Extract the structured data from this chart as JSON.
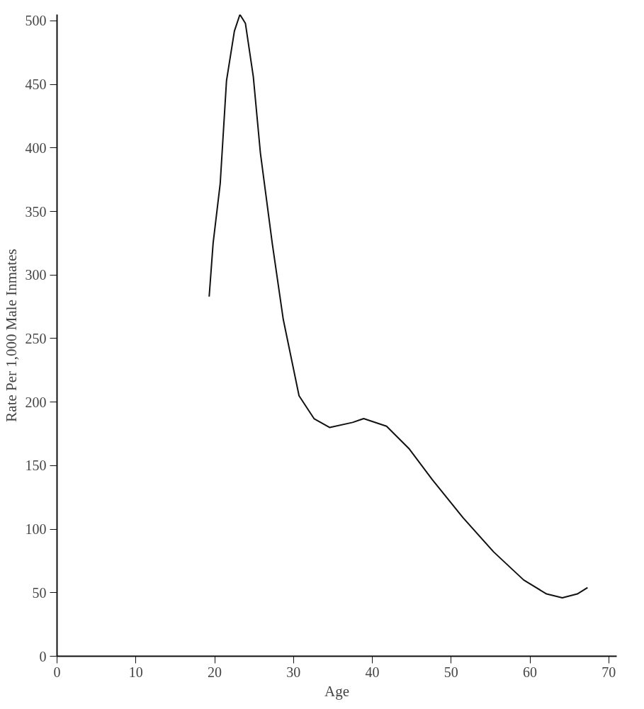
{
  "chart_data": {
    "type": "line",
    "xlabel": "Age",
    "ylabel": "Rate Per 1,000 Male Inmates",
    "xlim": [
      0,
      71
    ],
    "ylim": [
      0,
      505
    ],
    "xticks": [
      0,
      10,
      20,
      30,
      40,
      50,
      60,
      70
    ],
    "yticks": [
      0,
      50,
      100,
      150,
      200,
      250,
      300,
      350,
      400,
      450,
      500
    ],
    "grid": false,
    "marker": "none",
    "line_style": "solid",
    "series": [
      {
        "color": "#111111",
        "x": [
          19.3,
          19.8,
          20.7,
          21.5,
          22.5,
          23.2,
          23.9,
          24.9,
          25.8,
          27.3,
          28.7,
          30.7,
          32.6,
          34.6,
          37.5,
          38.9,
          41.8,
          44.7,
          47.6,
          51.5,
          55.4,
          59.2,
          62.1,
          64.1,
          66.0,
          67.3
        ],
        "values": [
          283,
          325,
          372,
          453,
          492,
          505,
          498,
          456,
          396,
          325,
          265,
          205,
          187,
          180,
          184,
          187,
          181,
          163,
          139,
          109,
          82,
          60,
          49,
          46,
          49,
          54
        ]
      }
    ]
  }
}
